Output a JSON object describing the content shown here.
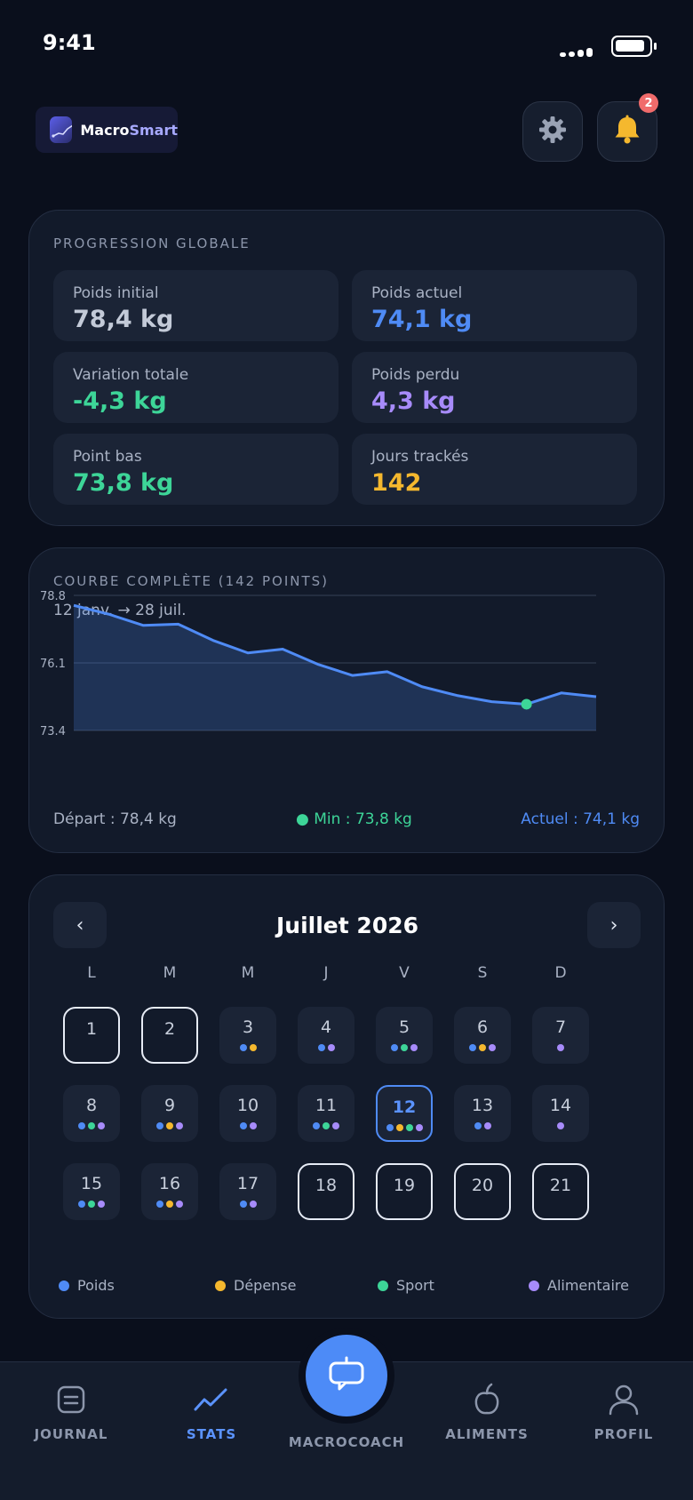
{
  "status_bar": {
    "time": "9:41"
  },
  "app": {
    "logo_text_primary": "Macro",
    "logo_text_accent": "Smart",
    "notification_count": "2"
  },
  "progress": {
    "title": "PROGRESSION GLOBALE",
    "stats": [
      {
        "label": "Poids initial",
        "value": "78,4 kg",
        "color": "#c3cad8"
      },
      {
        "label": "Poids actuel",
        "value": "74,1 kg",
        "color": "#4f8bf5"
      },
      {
        "label": "Variation totale",
        "value": "-4,3 kg",
        "color": "#3dd598"
      },
      {
        "label": "Poids perdu",
        "value": "4,3 kg",
        "color": "#a78bfa"
      },
      {
        "label": "Point bas",
        "value": "73,8 kg",
        "color": "#3dd598"
      },
      {
        "label": "Jours trackés",
        "value": "142",
        "color": "#f5b82e"
      }
    ]
  },
  "curve": {
    "title": "COURBE COMPLÈTE (142 POINTS)",
    "range": "12 janv. → 28 juil.",
    "start_label": "Départ : 78,4 kg",
    "min_label": "● Min : 73,8 kg",
    "current_label": "Actuel : 74,1 kg"
  },
  "chart_data": {
    "type": "area",
    "yticks": [
      "78.8",
      "76.1",
      "73.4"
    ],
    "ylim": [
      73.4,
      78.8
    ],
    "values": [
      78.4,
      78.05,
      77.6,
      77.65,
      77.0,
      76.5,
      76.65,
      76.05,
      75.6,
      75.75,
      75.15,
      74.8,
      74.55,
      74.45,
      74.9,
      74.75
    ],
    "min_index": 13,
    "line_color": "#4f8bf5",
    "min_color": "#3dd598"
  },
  "calendar": {
    "prev": "‹",
    "next": "›",
    "month": "Juillet 2026",
    "weekdays": [
      "L",
      "M",
      "M",
      "J",
      "V",
      "S",
      "D"
    ],
    "weeks": [
      [
        {
          "day": "1",
          "dots": []
        },
        {
          "day": "2",
          "dots": []
        },
        {
          "day": "3",
          "dots": [
            "#4f8bf5",
            "#f5b82e"
          ]
        },
        {
          "day": "4",
          "dots": [
            "#4f8bf5",
            "#a78bfa"
          ]
        },
        {
          "day": "5",
          "dots": [
            "#4f8bf5",
            "#3dd598",
            "#a78bfa"
          ]
        },
        {
          "day": "6",
          "dots": [
            "#4f8bf5",
            "#f5b82e",
            "#a78bfa"
          ]
        },
        {
          "day": "7",
          "dots": [
            "#a78bfa"
          ]
        }
      ],
      [
        {
          "day": "8",
          "dots": [
            "#4f8bf5",
            "#3dd598",
            "#a78bfa"
          ]
        },
        {
          "day": "9",
          "dots": [
            "#4f8bf5",
            "#f5b82e",
            "#a78bfa"
          ]
        },
        {
          "day": "10",
          "dots": [
            "#4f8bf5",
            "#a78bfa"
          ]
        },
        {
          "day": "11",
          "dots": [
            "#4f8bf5",
            "#3dd598",
            "#a78bfa"
          ]
        },
        {
          "day": "12",
          "dots": [
            "#4f8bf5",
            "#f5b82e",
            "#3dd598",
            "#a78bfa"
          ],
          "selected": true
        },
        {
          "day": "13",
          "dots": [
            "#4f8bf5",
            "#a78bfa"
          ]
        },
        {
          "day": "14",
          "dots": [
            "#a78bfa"
          ]
        }
      ],
      [
        {
          "day": "15",
          "dots": [
            "#4f8bf5",
            "#3dd598",
            "#a78bfa"
          ]
        },
        {
          "day": "16",
          "dots": [
            "#4f8bf5",
            "#f5b82e",
            "#a78bfa"
          ]
        },
        {
          "day": "17",
          "dots": [
            "#4f8bf5",
            "#a78bfa"
          ]
        },
        {
          "day": "18",
          "dots": []
        },
        {
          "day": "19",
          "dots": []
        },
        {
          "day": "20",
          "dots": []
        },
        {
          "day": "21",
          "dots": []
        }
      ]
    ],
    "legend": [
      {
        "label": "Poids",
        "color": "#4f8bf5"
      },
      {
        "label": "Dépense",
        "color": "#f5b82e"
      },
      {
        "label": "Sport",
        "color": "#3dd598"
      },
      {
        "label": "Alimentaire",
        "color": "#a78bfa"
      }
    ]
  },
  "nav": {
    "journal": "JOURNAL",
    "stats": "STATS",
    "coach": "MACROCOACH",
    "aliments": "ALIMENTS",
    "profil": "PROFIL"
  }
}
